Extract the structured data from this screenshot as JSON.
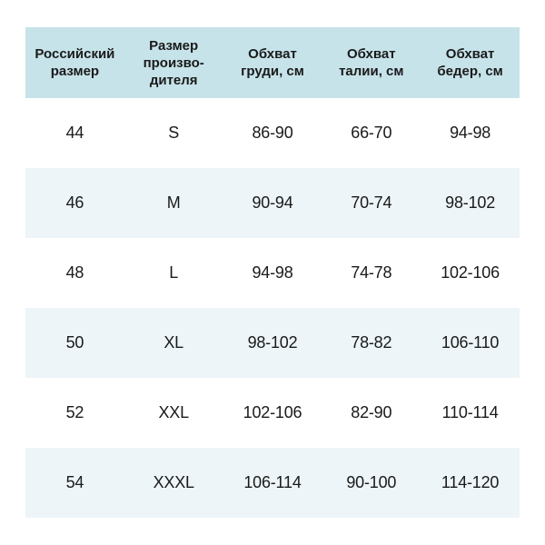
{
  "table": {
    "headers": [
      "Российский размер",
      "Размер произво-дителя",
      "Обхват груди, см",
      "Обхват талии, см",
      "Обхват бедер, см"
    ],
    "rows": [
      [
        "44",
        "S",
        "86-90",
        "66-70",
        "94-98"
      ],
      [
        "46",
        "M",
        "90-94",
        "70-74",
        "98-102"
      ],
      [
        "48",
        "L",
        "94-98",
        "74-78",
        "102-106"
      ],
      [
        "50",
        "XL",
        "98-102",
        "78-82",
        "106-110"
      ],
      [
        "52",
        "XXL",
        "102-106",
        "82-90",
        "110-114"
      ],
      [
        "54",
        "XXXL",
        "106-114",
        "90-100",
        "114-120"
      ]
    ],
    "colors": {
      "header_bg": "#c7e3ea",
      "row_bg": "#ffffff",
      "row_alt_bg": "#edf5f8",
      "text": "#1a1a1a"
    }
  }
}
